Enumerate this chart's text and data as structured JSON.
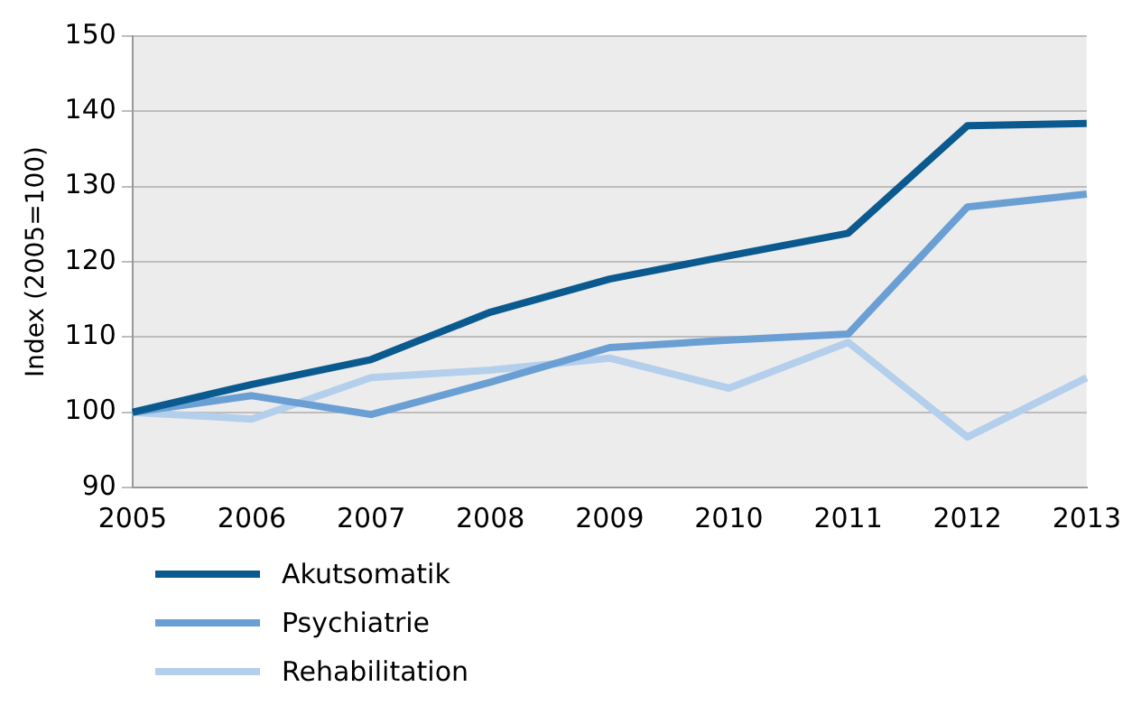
{
  "chart_data": {
    "type": "line",
    "ylabel": "Index (2005=100)",
    "categories": [
      "2005",
      "2006",
      "2007",
      "2008",
      "2009",
      "2010",
      "2011",
      "2012",
      "2013"
    ],
    "series": [
      {
        "name": "Akutsomatik",
        "color": "#0a5a8f",
        "values": [
          100,
          103.7,
          107,
          113.3,
          117.7,
          120.8,
          123.8,
          138.1,
          138.4
        ]
      },
      {
        "name": "Psychiatrie",
        "color": "#6a9fd4",
        "values": [
          100,
          102.2,
          99.7,
          104,
          108.6,
          109.6,
          110.4,
          127.3,
          129
        ]
      },
      {
        "name": "Rehabilitation",
        "color": "#b3cfec",
        "values": [
          100,
          99.1,
          104.6,
          105.6,
          107.2,
          103.2,
          109.3,
          96.7,
          104.6
        ]
      }
    ],
    "ylim": [
      90,
      150
    ],
    "yticks": [
      90,
      100,
      110,
      120,
      130,
      140,
      150
    ],
    "grid": "y",
    "legend": "bottom",
    "marker": "none",
    "line_style": "solid"
  }
}
